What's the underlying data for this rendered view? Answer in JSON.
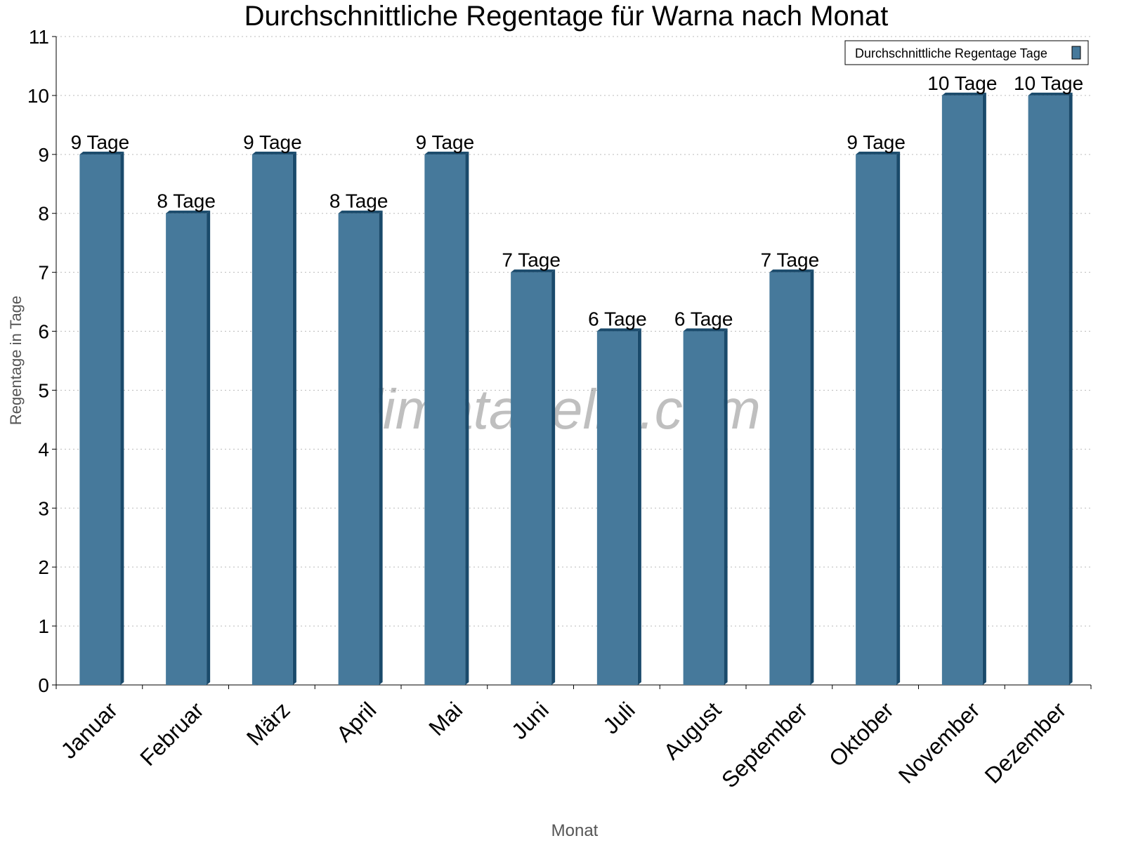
{
  "chart_data": {
    "type": "bar",
    "title": "Durchschnittliche Regentage für Warna nach Monat",
    "xlabel": "Monat",
    "ylabel": "Regentage in Tage",
    "ylim": [
      0,
      11
    ],
    "yticks": [
      0,
      1,
      2,
      3,
      4,
      5,
      6,
      7,
      8,
      9,
      10,
      11
    ],
    "grid": true,
    "legend_position": "top-right",
    "categories": [
      "Januar",
      "Februar",
      "März",
      "April",
      "Mai",
      "Juni",
      "Juli",
      "August",
      "September",
      "Oktober",
      "November",
      "Dezember"
    ],
    "series": [
      {
        "name": "Durchschnittliche Regentage Tage",
        "values": [
          9,
          8,
          9,
          8,
          9,
          7,
          6,
          6,
          7,
          9,
          10,
          10
        ],
        "color": "#46799b",
        "shade_color": "#1a4a6b"
      }
    ],
    "data_labels": [
      "9 Tage",
      "8 Tage",
      "9 Tage",
      "8 Tage",
      "9 Tage",
      "7 Tage",
      "6 Tage",
      "6 Tage",
      "7 Tage",
      "9 Tage",
      "10 Tage",
      "10 Tage"
    ],
    "watermark": "klimatabelle.com"
  }
}
